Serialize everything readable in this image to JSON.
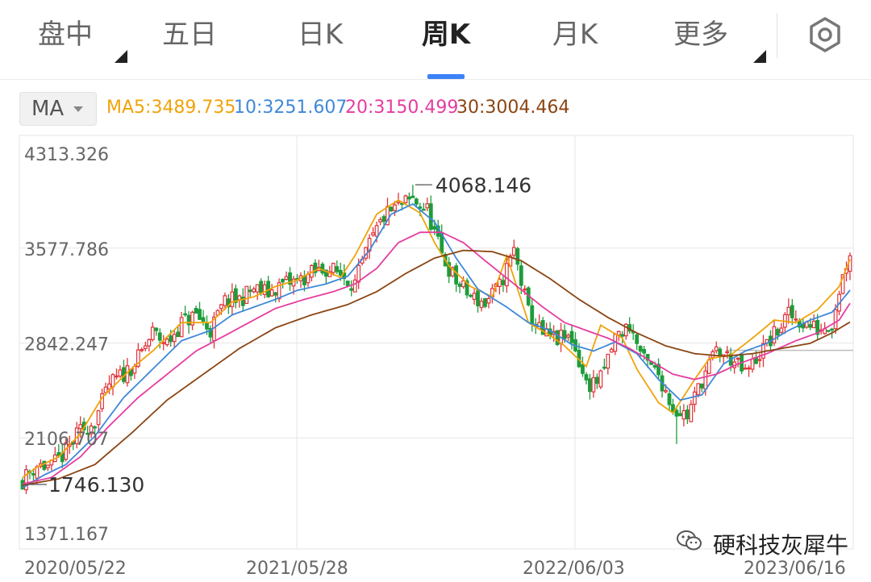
{
  "tabs": [
    {
      "label": "盘中",
      "active": false,
      "dropdown": true
    },
    {
      "label": "五日",
      "active": false,
      "dropdown": false
    },
    {
      "label": "日K",
      "active": false,
      "dropdown": false
    },
    {
      "label": "周K",
      "active": true,
      "dropdown": false
    },
    {
      "label": "月K",
      "active": false,
      "dropdown": false
    },
    {
      "label": "更多",
      "active": false,
      "dropdown": true
    }
  ],
  "settings_icon": "gear-icon",
  "indicator": {
    "button_label": "MA",
    "values": [
      {
        "text": "MA5:3489.735",
        "color": "#f0a30a"
      },
      {
        "text": "10:3251.607",
        "color": "#3f88d8"
      },
      {
        "text": "20:3150.499",
        "color": "#e63ca0"
      },
      {
        "text": "30:3004.464",
        "color": "#8b4513"
      }
    ]
  },
  "colors": {
    "up": "#e0343a",
    "down": "#1e9c3b",
    "ma5": "#f0a30a",
    "ma10": "#3f88d8",
    "ma20": "#e63ca0",
    "ma30": "#8b4513",
    "grid": "#e6e6e6"
  },
  "watermark": {
    "text": "硬科技灰犀牛",
    "icon": "wechat-icon"
  },
  "chart_data": {
    "type": "candlestick",
    "ylim": [
      1371.167,
      4313.326
    ],
    "y_ticks": [
      "4313.326",
      "3577.786",
      "2842.247",
      "2106.707",
      "1371.167"
    ],
    "x_ticks": [
      "2020/05/22",
      "2021/05/28",
      "2022/06/03",
      "2023/06/16"
    ],
    "max_label": "4068.146",
    "min_label": "1746.130",
    "reference_level": 2785,
    "ma_lines": [
      {
        "name": "MA5",
        "points": [
          [
            0,
            1800
          ],
          [
            4,
            1880
          ],
          [
            10,
            1960
          ],
          [
            16,
            2140
          ],
          [
            22,
            2420
          ],
          [
            30,
            2640
          ],
          [
            36,
            2780
          ],
          [
            44,
            3000
          ],
          [
            52,
            3000
          ],
          [
            58,
            3160
          ],
          [
            64,
            3200
          ],
          [
            70,
            3280
          ],
          [
            76,
            3330
          ],
          [
            82,
            3420
          ],
          [
            88,
            3350
          ],
          [
            92,
            3520
          ],
          [
            98,
            3840
          ],
          [
            104,
            3950
          ],
          [
            110,
            3850
          ],
          [
            114,
            3620
          ],
          [
            118,
            3440
          ],
          [
            124,
            3280
          ],
          [
            130,
            3200
          ],
          [
            134,
            3520
          ],
          [
            140,
            3000
          ],
          [
            146,
            2900
          ],
          [
            150,
            2820
          ],
          [
            156,
            2660
          ],
          [
            160,
            2980
          ],
          [
            166,
            2880
          ],
          [
            170,
            2640
          ],
          [
            176,
            2380
          ],
          [
            180,
            2300
          ],
          [
            186,
            2560
          ],
          [
            190,
            2720
          ],
          [
            196,
            2750
          ],
          [
            202,
            2880
          ],
          [
            208,
            3020
          ],
          [
            214,
            3000
          ],
          [
            220,
            3100
          ],
          [
            226,
            3280
          ],
          [
            229,
            3489.735
          ]
        ]
      },
      {
        "name": "MA10",
        "points": [
          [
            0,
            1720
          ],
          [
            6,
            1820
          ],
          [
            12,
            1900
          ],
          [
            20,
            2120
          ],
          [
            28,
            2420
          ],
          [
            36,
            2640
          ],
          [
            44,
            2860
          ],
          [
            52,
            2940
          ],
          [
            58,
            3060
          ],
          [
            64,
            3120
          ],
          [
            70,
            3180
          ],
          [
            76,
            3250
          ],
          [
            84,
            3300
          ],
          [
            90,
            3360
          ],
          [
            96,
            3560
          ],
          [
            102,
            3840
          ],
          [
            108,
            3920
          ],
          [
            114,
            3780
          ],
          [
            120,
            3500
          ],
          [
            126,
            3260
          ],
          [
            134,
            3120
          ],
          [
            140,
            3000
          ],
          [
            146,
            2940
          ],
          [
            152,
            2830
          ],
          [
            158,
            2780
          ],
          [
            164,
            2850
          ],
          [
            170,
            2760
          ],
          [
            176,
            2560
          ],
          [
            182,
            2400
          ],
          [
            188,
            2440
          ],
          [
            194,
            2680
          ],
          [
            200,
            2780
          ],
          [
            206,
            2840
          ],
          [
            212,
            2940
          ],
          [
            218,
            3020
          ],
          [
            224,
            3080
          ],
          [
            229,
            3251.607
          ]
        ]
      },
      {
        "name": "MA20",
        "points": [
          [
            0,
            1750
          ],
          [
            8,
            1800
          ],
          [
            16,
            1960
          ],
          [
            24,
            2200
          ],
          [
            32,
            2420
          ],
          [
            40,
            2600
          ],
          [
            48,
            2780
          ],
          [
            56,
            2900
          ],
          [
            62,
            2990
          ],
          [
            70,
            3110
          ],
          [
            78,
            3180
          ],
          [
            86,
            3240
          ],
          [
            92,
            3300
          ],
          [
            98,
            3420
          ],
          [
            104,
            3620
          ],
          [
            110,
            3700
          ],
          [
            116,
            3700
          ],
          [
            122,
            3620
          ],
          [
            128,
            3480
          ],
          [
            136,
            3300
          ],
          [
            144,
            3120
          ],
          [
            150,
            3000
          ],
          [
            156,
            2940
          ],
          [
            162,
            2880
          ],
          [
            168,
            2800
          ],
          [
            174,
            2700
          ],
          [
            180,
            2600
          ],
          [
            186,
            2560
          ],
          [
            192,
            2600
          ],
          [
            198,
            2680
          ],
          [
            206,
            2760
          ],
          [
            214,
            2860
          ],
          [
            220,
            2920
          ],
          [
            226,
            3020
          ],
          [
            229,
            3150.499
          ]
        ]
      },
      {
        "name": "MA30",
        "points": [
          [
            0,
            1740
          ],
          [
            10,
            1790
          ],
          [
            20,
            1900
          ],
          [
            30,
            2140
          ],
          [
            40,
            2400
          ],
          [
            50,
            2600
          ],
          [
            60,
            2800
          ],
          [
            70,
            2960
          ],
          [
            80,
            3060
          ],
          [
            90,
            3140
          ],
          [
            98,
            3240
          ],
          [
            106,
            3380
          ],
          [
            114,
            3500
          ],
          [
            122,
            3560
          ],
          [
            130,
            3550
          ],
          [
            138,
            3480
          ],
          [
            146,
            3340
          ],
          [
            154,
            3180
          ],
          [
            162,
            3040
          ],
          [
            170,
            2920
          ],
          [
            178,
            2820
          ],
          [
            186,
            2760
          ],
          [
            194,
            2740
          ],
          [
            202,
            2760
          ],
          [
            210,
            2800
          ],
          [
            218,
            2840
          ],
          [
            224,
            2920
          ],
          [
            229,
            3004.464
          ]
        ]
      }
    ],
    "close_path": [
      [
        0,
        1780
      ],
      [
        4,
        1900
      ],
      [
        8,
        1880
      ],
      [
        12,
        2000
      ],
      [
        16,
        2160
      ],
      [
        20,
        2240
      ],
      [
        24,
        2520
      ],
      [
        28,
        2600
      ],
      [
        32,
        2720
      ],
      [
        36,
        2920
      ],
      [
        40,
        2840
      ],
      [
        44,
        3000
      ],
      [
        48,
        3060
      ],
      [
        52,
        2940
      ],
      [
        56,
        3160
      ],
      [
        60,
        3180
      ],
      [
        64,
        3260
      ],
      [
        68,
        3230
      ],
      [
        72,
        3300
      ],
      [
        76,
        3320
      ],
      [
        80,
        3380
      ],
      [
        84,
        3420
      ],
      [
        88,
        3380
      ],
      [
        92,
        3300
      ],
      [
        96,
        3600
      ],
      [
        100,
        3820
      ],
      [
        104,
        3900
      ],
      [
        108,
        3950
      ],
      [
        112,
        3870
      ],
      [
        116,
        3520
      ],
      [
        120,
        3320
      ],
      [
        124,
        3200
      ],
      [
        128,
        3150
      ],
      [
        132,
        3280
      ],
      [
        136,
        3560
      ],
      [
        140,
        3080
      ],
      [
        144,
        2900
      ],
      [
        148,
        2870
      ],
      [
        152,
        2880
      ],
      [
        156,
        2520
      ],
      [
        160,
        2560
      ],
      [
        164,
        2880
      ],
      [
        168,
        2980
      ],
      [
        172,
        2700
      ],
      [
        176,
        2600
      ],
      [
        180,
        2340
      ],
      [
        184,
        2280
      ],
      [
        188,
        2560
      ],
      [
        192,
        2780
      ],
      [
        196,
        2720
      ],
      [
        200,
        2600
      ],
      [
        204,
        2760
      ],
      [
        208,
        2900
      ],
      [
        212,
        3060
      ],
      [
        216,
        3000
      ],
      [
        220,
        2950
      ],
      [
        224,
        3000
      ],
      [
        226,
        3260
      ],
      [
        229,
        3560
      ]
    ]
  }
}
